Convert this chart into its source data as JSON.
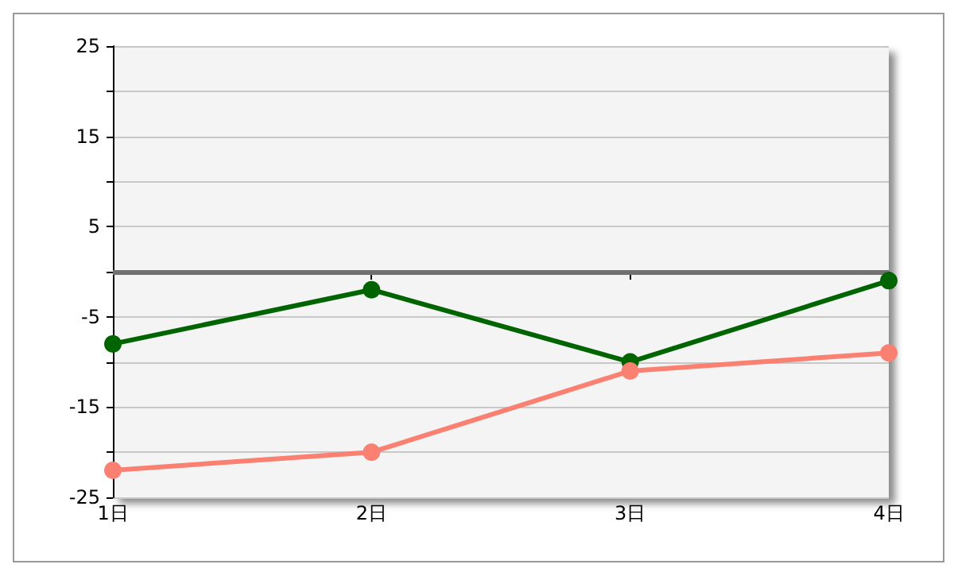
{
  "chart_data": {
    "type": "line",
    "categories": [
      "1日",
      "2日",
      "3日",
      "4日"
    ],
    "series": [
      {
        "color": "#006400",
        "values": [
          -8,
          -2,
          -10,
          -1
        ]
      },
      {
        "color": "#fa8072",
        "values": [
          -22,
          -20,
          -11,
          -9
        ]
      }
    ],
    "ylim": [
      -25,
      25
    ],
    "yticks": [
      -25,
      {
        "value": -20,
        "label": null
      },
      -15,
      {
        "value": -10,
        "label": null
      },
      -5,
      {
        "value": 0,
        "label": null
      },
      5,
      {
        "value": 10,
        "label": null
      },
      15,
      {
        "value": 20,
        "label": null
      },
      25
    ],
    "ref_lines": [
      {
        "axis": "y",
        "value": 0,
        "color": "#707070"
      }
    ],
    "grid": "y",
    "marker": "circle",
    "line_style": "solid"
  }
}
